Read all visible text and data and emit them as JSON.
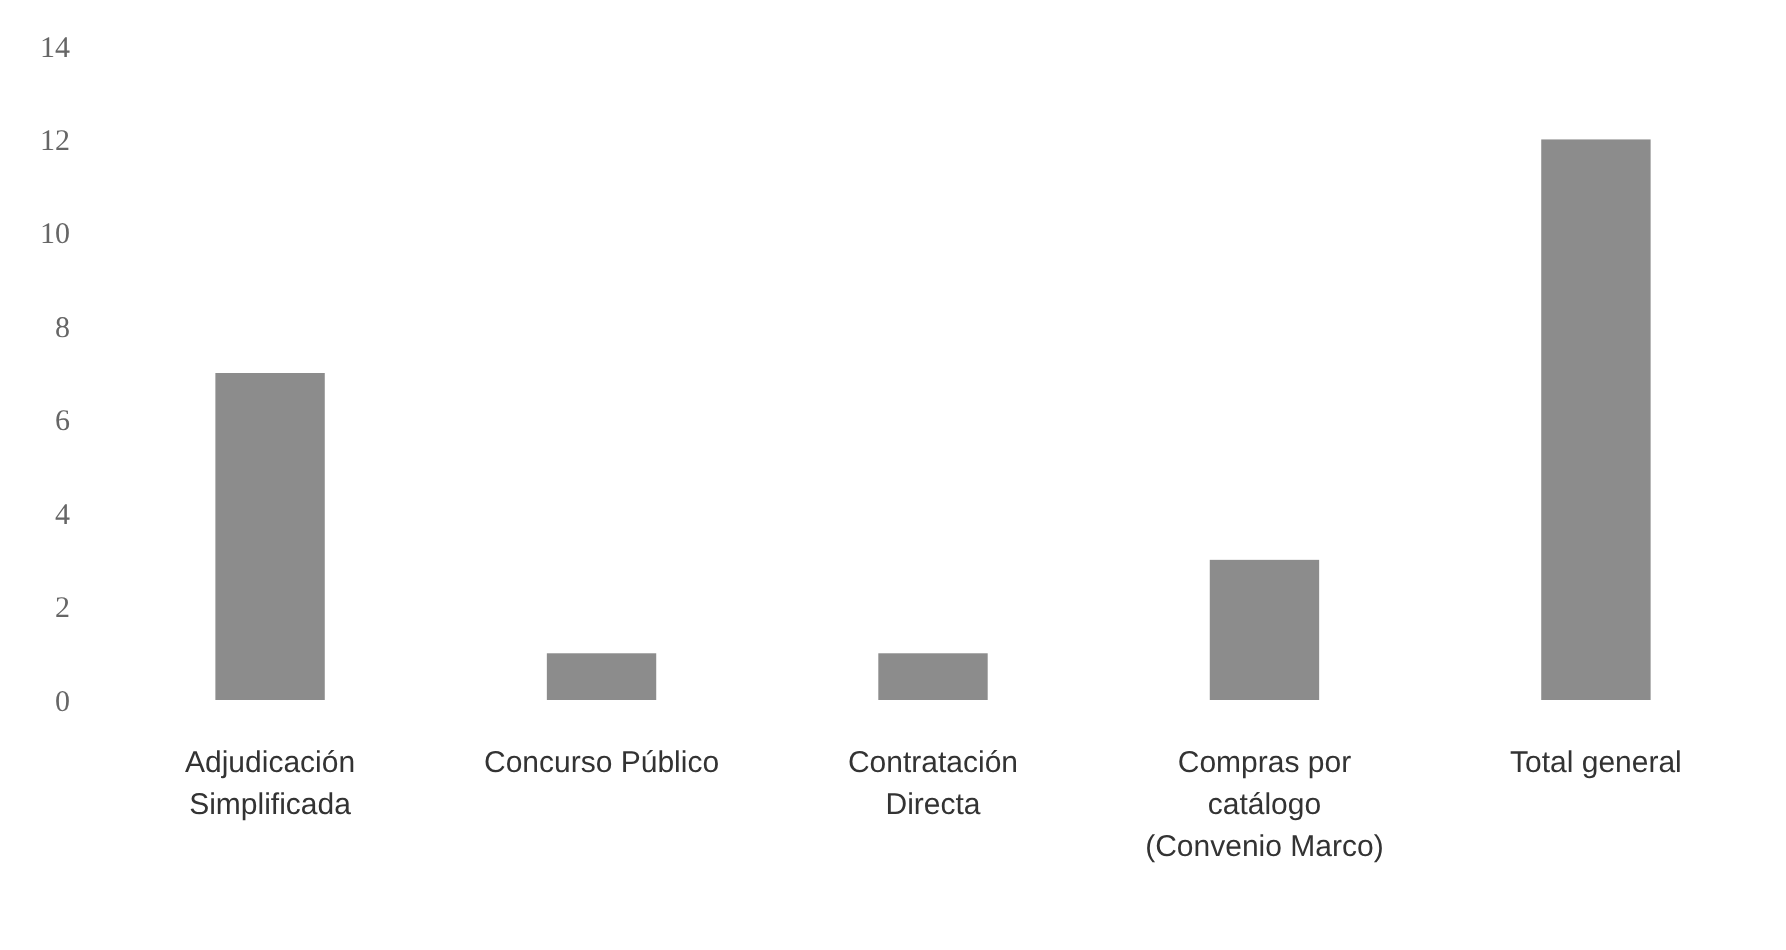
{
  "chart_data": {
    "type": "bar",
    "categories": [
      "Adjudicación Simplificada",
      "Concurso Público",
      "Contratación Directa",
      "Compras por catálogo (Convenio Marco)",
      "Total general"
    ],
    "values": [
      7,
      1,
      1,
      3,
      12
    ],
    "color": "#8c8c8c",
    "ylim": [
      0,
      14
    ],
    "yticks": [
      0,
      2,
      4,
      6,
      8,
      10,
      12,
      14
    ],
    "grid": false
  }
}
